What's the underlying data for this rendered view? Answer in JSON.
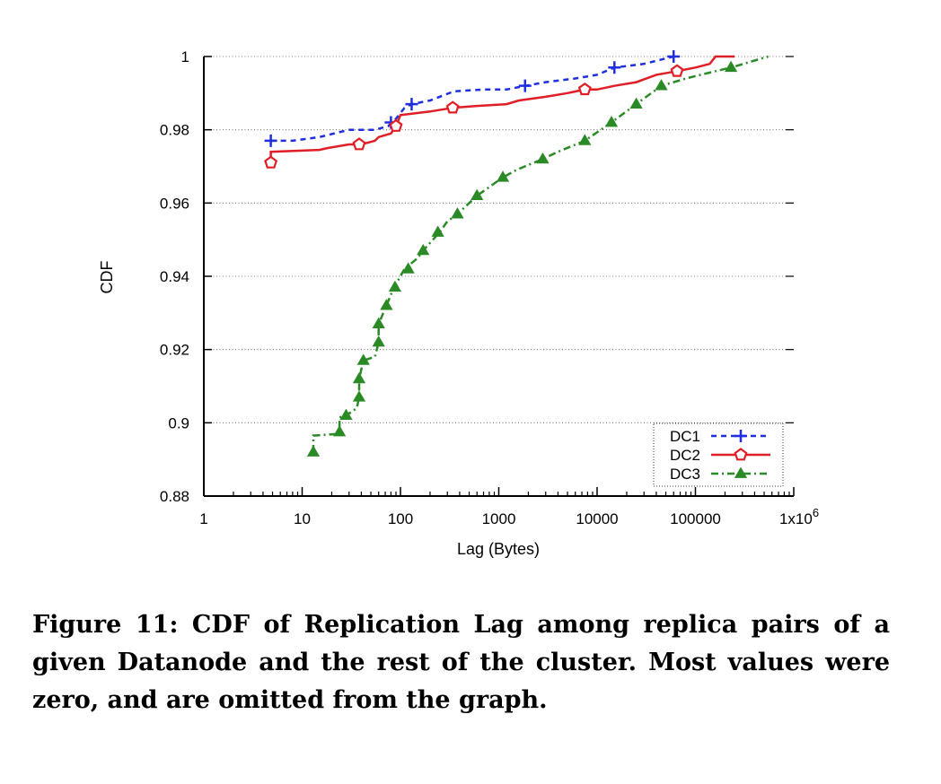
{
  "caption": "Figure 11: CDF of Replication Lag among replica pairs of a given Datanode and the rest of the cluster. Most values were zero, and are omitted from the graph.",
  "chart_data": {
    "type": "line",
    "title": "",
    "xlabel": "Lag (Bytes)",
    "ylabel": "CDF",
    "xscale": "log",
    "xlim": [
      1,
      1000000
    ],
    "ylim": [
      0.88,
      1.0
    ],
    "x_ticks": [
      {
        "value": 1,
        "label": "1"
      },
      {
        "value": 10,
        "label": "10"
      },
      {
        "value": 100,
        "label": "100"
      },
      {
        "value": 1000,
        "label": "1000"
      },
      {
        "value": 10000,
        "label": "10000"
      },
      {
        "value": 100000,
        "label": "100000"
      },
      {
        "value": 1000000,
        "label": "1x10",
        "sup": "6"
      }
    ],
    "y_ticks": [
      {
        "value": 0.88,
        "label": "0.88"
      },
      {
        "value": 0.9,
        "label": "0.9"
      },
      {
        "value": 0.92,
        "label": "0.92"
      },
      {
        "value": 0.94,
        "label": "0.94"
      },
      {
        "value": 0.96,
        "label": "0.96"
      },
      {
        "value": 0.98,
        "label": "0.98"
      },
      {
        "value": 1.0,
        "label": "1"
      }
    ],
    "grid": "horizontal dotted",
    "legend_position": "bottom-right",
    "series": [
      {
        "name": "DC1",
        "color": "#1f2fe0",
        "dash": "dashed",
        "marker": "plus",
        "points": [
          [
            4.8,
            0.977
          ],
          [
            8,
            0.977
          ],
          [
            15,
            0.978
          ],
          [
            30,
            0.98
          ],
          [
            55,
            0.98
          ],
          [
            75,
            0.981
          ],
          [
            90,
            0.983
          ],
          [
            110,
            0.986
          ],
          [
            130,
            0.987
          ],
          [
            200,
            0.988
          ],
          [
            350,
            0.9905
          ],
          [
            700,
            0.991
          ],
          [
            1200,
            0.991
          ],
          [
            1850,
            0.992
          ],
          [
            3000,
            0.993
          ],
          [
            6000,
            0.994
          ],
          [
            10000,
            0.995
          ],
          [
            15000,
            0.997
          ],
          [
            30000,
            0.998
          ],
          [
            60000,
            1.0
          ]
        ],
        "markers": [
          [
            4.8,
            0.977
          ],
          [
            80,
            0.982
          ],
          [
            130,
            0.987
          ],
          [
            1850,
            0.992
          ],
          [
            15000,
            0.997
          ],
          [
            60000,
            1.0
          ]
        ]
      },
      {
        "name": "DC2",
        "color": "#e01e26",
        "dash": "solid",
        "marker": "pentagon",
        "points": [
          [
            4.8,
            0.971
          ],
          [
            4.8,
            0.974
          ],
          [
            15,
            0.9745
          ],
          [
            18,
            0.975
          ],
          [
            30,
            0.976
          ],
          [
            40,
            0.976
          ],
          [
            55,
            0.977
          ],
          [
            60,
            0.978
          ],
          [
            80,
            0.979
          ],
          [
            90,
            0.981
          ],
          [
            100,
            0.984
          ],
          [
            200,
            0.985
          ],
          [
            340,
            0.986
          ],
          [
            600,
            0.9865
          ],
          [
            1200,
            0.987
          ],
          [
            1600,
            0.988
          ],
          [
            3000,
            0.989
          ],
          [
            5000,
            0.99
          ],
          [
            7500,
            0.991
          ],
          [
            10000,
            0.991
          ],
          [
            15000,
            0.992
          ],
          [
            25000,
            0.993
          ],
          [
            40000,
            0.995
          ],
          [
            65000,
            0.996
          ],
          [
            100000,
            0.997
          ],
          [
            140000,
            0.998
          ],
          [
            160000,
            1.0
          ],
          [
            250000,
            1.0
          ]
        ],
        "markers": [
          [
            4.8,
            0.971
          ],
          [
            38,
            0.976
          ],
          [
            90,
            0.981
          ],
          [
            340,
            0.986
          ],
          [
            7500,
            0.991
          ],
          [
            65000,
            0.996
          ]
        ]
      },
      {
        "name": "DC3",
        "color": "#2a8a26",
        "dash": "dash-dot",
        "marker": "triangle",
        "points": [
          [
            13,
            0.892
          ],
          [
            13,
            0.8965
          ],
          [
            24,
            0.897
          ],
          [
            24,
            0.9015
          ],
          [
            28,
            0.902
          ],
          [
            36,
            0.904
          ],
          [
            38,
            0.907
          ],
          [
            38,
            0.912
          ],
          [
            42,
            0.917
          ],
          [
            55,
            0.918
          ],
          [
            60,
            0.922
          ],
          [
            60,
            0.927
          ],
          [
            72,
            0.932
          ],
          [
            80,
            0.935
          ],
          [
            88,
            0.9375
          ],
          [
            95,
            0.939
          ],
          [
            110,
            0.942
          ],
          [
            150,
            0.945
          ],
          [
            170,
            0.947
          ],
          [
            250,
            0.952
          ],
          [
            300,
            0.955
          ],
          [
            380,
            0.957
          ],
          [
            600,
            0.962
          ],
          [
            1100,
            0.967
          ],
          [
            1500,
            0.969
          ],
          [
            2800,
            0.972
          ],
          [
            4000,
            0.974
          ],
          [
            7500,
            0.977
          ],
          [
            14000,
            0.982
          ],
          [
            25000,
            0.987
          ],
          [
            45000,
            0.992
          ],
          [
            80000,
            0.994
          ],
          [
            160000,
            0.996
          ],
          [
            230000,
            0.997
          ],
          [
            550000,
            1.0
          ]
        ],
        "markers": [
          [
            13,
            0.892
          ],
          [
            24,
            0.8975
          ],
          [
            28,
            0.902
          ],
          [
            38,
            0.907
          ],
          [
            38,
            0.912
          ],
          [
            42,
            0.917
          ],
          [
            60,
            0.922
          ],
          [
            60,
            0.927
          ],
          [
            72,
            0.932
          ],
          [
            88,
            0.937
          ],
          [
            120,
            0.942
          ],
          [
            170,
            0.947
          ],
          [
            240,
            0.952
          ],
          [
            380,
            0.957
          ],
          [
            600,
            0.962
          ],
          [
            1100,
            0.967
          ],
          [
            2800,
            0.972
          ],
          [
            7500,
            0.977
          ],
          [
            14000,
            0.982
          ],
          [
            25000,
            0.987
          ],
          [
            45000,
            0.992
          ],
          [
            230000,
            0.997
          ]
        ]
      }
    ]
  }
}
